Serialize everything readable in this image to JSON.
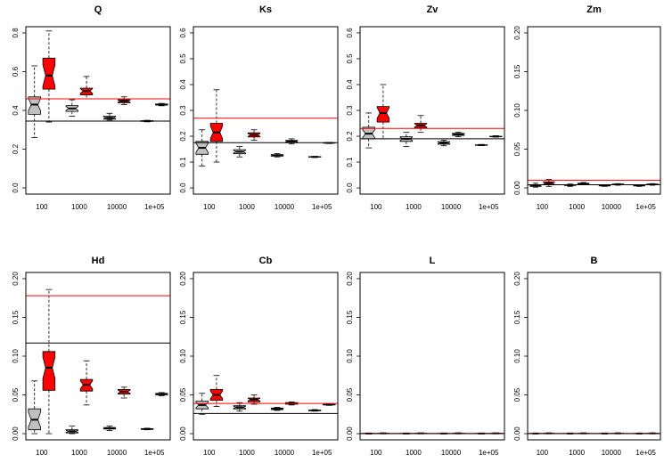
{
  "chart_data": [
    {
      "type": "box",
      "title": "Q",
      "categories": [
        "100",
        "1000",
        "10000",
        "1e+05"
      ],
      "ylim": [
        0,
        0.8
      ],
      "yticks": [
        "0.0",
        "0.2",
        "0.4",
        "0.6",
        "0.8"
      ],
      "reference_lines": [
        {
          "color": "#ff0000",
          "y": 0.46
        },
        {
          "color": "#000000",
          "y": 0.345
        }
      ],
      "boxes": [
        {
          "category": "100",
          "group": "gray",
          "min": 0.26,
          "q1": 0.38,
          "median": 0.43,
          "q3": 0.47,
          "max": 0.63
        },
        {
          "category": "100",
          "group": "red",
          "min": 0.34,
          "q1": 0.51,
          "median": 0.58,
          "q3": 0.67,
          "max": 0.81
        },
        {
          "category": "1000",
          "group": "gray",
          "min": 0.37,
          "q1": 0.395,
          "median": 0.41,
          "q3": 0.425,
          "max": 0.455
        },
        {
          "category": "1000",
          "group": "red",
          "min": 0.46,
          "q1": 0.48,
          "median": 0.5,
          "q3": 0.515,
          "max": 0.575
        },
        {
          "category": "10000",
          "group": "gray",
          "min": 0.35,
          "q1": 0.355,
          "median": 0.362,
          "q3": 0.37,
          "max": 0.385
        },
        {
          "category": "10000",
          "group": "red",
          "min": 0.43,
          "q1": 0.44,
          "median": 0.448,
          "q3": 0.455,
          "max": 0.47
        },
        {
          "category": "1e+05",
          "group": "gray",
          "min": 0.341,
          "q1": 0.343,
          "median": 0.345,
          "q3": 0.347,
          "max": 0.349
        },
        {
          "category": "1e+05",
          "group": "red",
          "min": 0.424,
          "q1": 0.427,
          "median": 0.43,
          "q3": 0.433,
          "max": 0.436
        }
      ]
    },
    {
      "type": "box",
      "title": "Ks",
      "categories": [
        "100",
        "1000",
        "10000",
        "1e+05"
      ],
      "ylim": [
        0,
        0.6
      ],
      "yticks": [
        "0.0",
        "0.1",
        "0.2",
        "0.3",
        "0.4",
        "0.5",
        "0.6"
      ],
      "reference_lines": [
        {
          "color": "#ff0000",
          "y": 0.27
        },
        {
          "color": "#000000",
          "y": 0.175
        }
      ],
      "boxes": [
        {
          "category": "100",
          "group": "gray",
          "min": 0.085,
          "q1": 0.13,
          "median": 0.155,
          "q3": 0.18,
          "max": 0.225
        },
        {
          "category": "100",
          "group": "red",
          "min": 0.1,
          "q1": 0.18,
          "median": 0.215,
          "q3": 0.25,
          "max": 0.38
        },
        {
          "category": "1000",
          "group": "gray",
          "min": 0.12,
          "q1": 0.132,
          "median": 0.14,
          "q3": 0.148,
          "max": 0.16
        },
        {
          "category": "1000",
          "group": "red",
          "min": 0.185,
          "q1": 0.197,
          "median": 0.205,
          "q3": 0.213,
          "max": 0.225
        },
        {
          "category": "10000",
          "group": "gray",
          "min": 0.12,
          "q1": 0.123,
          "median": 0.126,
          "q3": 0.129,
          "max": 0.133
        },
        {
          "category": "10000",
          "group": "red",
          "min": 0.17,
          "q1": 0.176,
          "median": 0.18,
          "q3": 0.184,
          "max": 0.19
        },
        {
          "category": "1e+05",
          "group": "gray",
          "min": 0.118,
          "q1": 0.119,
          "median": 0.12,
          "q3": 0.121,
          "max": 0.122
        },
        {
          "category": "1e+05",
          "group": "red",
          "min": 0.172,
          "q1": 0.173,
          "median": 0.174,
          "q3": 0.175,
          "max": 0.176
        }
      ]
    },
    {
      "type": "box",
      "title": "Zv",
      "categories": [
        "100",
        "1000",
        "10000",
        "1e+05"
      ],
      "ylim": [
        0,
        0.6
      ],
      "yticks": [
        "0.0",
        "0.1",
        "0.2",
        "0.3",
        "0.4",
        "0.5",
        "0.6"
      ],
      "reference_lines": [
        {
          "color": "#ff0000",
          "y": 0.23
        },
        {
          "color": "#000000",
          "y": 0.19
        }
      ],
      "boxes": [
        {
          "category": "100",
          "group": "gray",
          "min": 0.155,
          "q1": 0.19,
          "median": 0.21,
          "q3": 0.235,
          "max": 0.29
        },
        {
          "category": "100",
          "group": "red",
          "min": 0.19,
          "q1": 0.255,
          "median": 0.29,
          "q3": 0.315,
          "max": 0.4
        },
        {
          "category": "1000",
          "group": "gray",
          "min": 0.16,
          "q1": 0.18,
          "median": 0.19,
          "q3": 0.198,
          "max": 0.215
        },
        {
          "category": "1000",
          "group": "red",
          "min": 0.215,
          "q1": 0.232,
          "median": 0.242,
          "q3": 0.25,
          "max": 0.28
        },
        {
          "category": "10000",
          "group": "gray",
          "min": 0.163,
          "q1": 0.169,
          "median": 0.174,
          "q3": 0.179,
          "max": 0.185
        },
        {
          "category": "10000",
          "group": "red",
          "min": 0.198,
          "q1": 0.203,
          "median": 0.207,
          "q3": 0.211,
          "max": 0.216
        },
        {
          "category": "1e+05",
          "group": "gray",
          "min": 0.164,
          "q1": 0.165,
          "median": 0.166,
          "q3": 0.167,
          "max": 0.168
        },
        {
          "category": "1e+05",
          "group": "red",
          "min": 0.197,
          "q1": 0.198,
          "median": 0.199,
          "q3": 0.2,
          "max": 0.202
        }
      ]
    },
    {
      "type": "box",
      "title": "Zm",
      "categories": [
        "100",
        "1000",
        "10000",
        "1e+05"
      ],
      "ylim": [
        0,
        0.2
      ],
      "yticks": [
        "0.00",
        "0.05",
        "0.10",
        "0.15",
        "0.20"
      ],
      "reference_lines": [
        {
          "color": "#ff0000",
          "y": 0.01
        },
        {
          "color": "#000000",
          "y": 0.004
        }
      ],
      "boxes": [
        {
          "category": "100",
          "group": "gray",
          "min": 0.001,
          "q1": 0.002,
          "median": 0.003,
          "q3": 0.004,
          "max": 0.006
        },
        {
          "category": "100",
          "group": "red",
          "min": 0.002,
          "q1": 0.004,
          "median": 0.006,
          "q3": 0.008,
          "max": 0.011
        },
        {
          "category": "1000",
          "group": "gray",
          "min": 0.002,
          "q1": 0.003,
          "median": 0.0035,
          "q3": 0.004,
          "max": 0.005
        },
        {
          "category": "1000",
          "group": "red",
          "min": 0.004,
          "q1": 0.005,
          "median": 0.0055,
          "q3": 0.006,
          "max": 0.007
        },
        {
          "category": "10000",
          "group": "gray",
          "min": 0.002,
          "q1": 0.0025,
          "median": 0.003,
          "q3": 0.0035,
          "max": 0.004
        },
        {
          "category": "10000",
          "group": "red",
          "min": 0.0035,
          "q1": 0.004,
          "median": 0.0045,
          "q3": 0.005,
          "max": 0.0055
        },
        {
          "category": "1e+05",
          "group": "gray",
          "min": 0.002,
          "q1": 0.0025,
          "median": 0.003,
          "q3": 0.0035,
          "max": 0.004
        },
        {
          "category": "1e+05",
          "group": "red",
          "min": 0.0035,
          "q1": 0.004,
          "median": 0.0045,
          "q3": 0.005,
          "max": 0.0055
        }
      ]
    },
    {
      "type": "box",
      "title": "Hd",
      "categories": [
        "100",
        "1000",
        "10000",
        "1e+05"
      ],
      "ylim": [
        0,
        0.2
      ],
      "yticks": [
        "0.00",
        "0.05",
        "0.10",
        "0.15",
        "0.20"
      ],
      "reference_lines": [
        {
          "color": "#ff0000",
          "y": 0.178
        },
        {
          "color": "#000000",
          "y": 0.117
        }
      ],
      "boxes": [
        {
          "category": "100",
          "group": "gray",
          "min": 0.0,
          "q1": 0.005,
          "median": 0.018,
          "q3": 0.032,
          "max": 0.068
        },
        {
          "category": "100",
          "group": "red",
          "min": 0.0,
          "q1": 0.056,
          "median": 0.085,
          "q3": 0.106,
          "max": 0.186
        },
        {
          "category": "1000",
          "group": "gray",
          "min": 0.0,
          "q1": 0.001,
          "median": 0.003,
          "q3": 0.005,
          "max": 0.01
        },
        {
          "category": "1000",
          "group": "red",
          "min": 0.037,
          "q1": 0.055,
          "median": 0.063,
          "q3": 0.07,
          "max": 0.094
        },
        {
          "category": "10000",
          "group": "gray",
          "min": 0.004,
          "q1": 0.006,
          "median": 0.007,
          "q3": 0.008,
          "max": 0.01
        },
        {
          "category": "10000",
          "group": "red",
          "min": 0.046,
          "q1": 0.051,
          "median": 0.054,
          "q3": 0.057,
          "max": 0.06
        },
        {
          "category": "1e+05",
          "group": "gray",
          "min": 0.005,
          "q1": 0.0055,
          "median": 0.006,
          "q3": 0.0065,
          "max": 0.007
        },
        {
          "category": "1e+05",
          "group": "red",
          "min": 0.049,
          "q1": 0.05,
          "median": 0.051,
          "q3": 0.052,
          "max": 0.053
        }
      ]
    },
    {
      "type": "box",
      "title": "Cb",
      "categories": [
        "100",
        "1000",
        "10000",
        "1e+05"
      ],
      "ylim": [
        0,
        0.2
      ],
      "yticks": [
        "0.00",
        "0.05",
        "0.10",
        "0.15",
        "0.20"
      ],
      "reference_lines": [
        {
          "color": "#ff0000",
          "y": 0.039
        },
        {
          "color": "#000000",
          "y": 0.026
        }
      ],
      "boxes": [
        {
          "category": "100",
          "group": "gray",
          "min": 0.025,
          "q1": 0.032,
          "median": 0.037,
          "q3": 0.042,
          "max": 0.052
        },
        {
          "category": "100",
          "group": "red",
          "min": 0.035,
          "q1": 0.043,
          "median": 0.05,
          "q3": 0.057,
          "max": 0.075
        },
        {
          "category": "1000",
          "group": "gray",
          "min": 0.029,
          "q1": 0.032,
          "median": 0.034,
          "q3": 0.036,
          "max": 0.04
        },
        {
          "category": "1000",
          "group": "red",
          "min": 0.038,
          "q1": 0.041,
          "median": 0.044,
          "q3": 0.046,
          "max": 0.05
        },
        {
          "category": "10000",
          "group": "gray",
          "min": 0.03,
          "q1": 0.031,
          "median": 0.032,
          "q3": 0.033,
          "max": 0.034
        },
        {
          "category": "10000",
          "group": "red",
          "min": 0.037,
          "q1": 0.038,
          "median": 0.039,
          "q3": 0.04,
          "max": 0.041
        },
        {
          "category": "1e+05",
          "group": "gray",
          "min": 0.029,
          "q1": 0.0295,
          "median": 0.03,
          "q3": 0.0305,
          "max": 0.031
        },
        {
          "category": "1e+05",
          "group": "red",
          "min": 0.0365,
          "q1": 0.037,
          "median": 0.0375,
          "q3": 0.038,
          "max": 0.0385
        }
      ]
    },
    {
      "type": "box",
      "title": "L",
      "categories": [
        "100",
        "1000",
        "10000",
        "1e+05"
      ],
      "ylim": [
        0,
        0.2
      ],
      "yticks": [
        "0.00",
        "0.05",
        "0.10",
        "0.15",
        "0.20"
      ],
      "reference_lines": [
        {
          "color": "#ff0000",
          "y": 0.0003
        },
        {
          "color": "#000000",
          "y": 0.0001
        }
      ],
      "boxes": [
        {
          "category": "100",
          "group": "gray",
          "min": 0.0,
          "q1": 0.0,
          "median": 0.0002,
          "q3": 0.0004,
          "max": 0.0006
        },
        {
          "category": "100",
          "group": "red",
          "min": 0.0,
          "q1": 0.0002,
          "median": 0.0004,
          "q3": 0.0006,
          "max": 0.0008
        },
        {
          "category": "1000",
          "group": "gray",
          "min": 0.0,
          "q1": 0.0,
          "median": 0.0002,
          "q3": 0.0004,
          "max": 0.0006
        },
        {
          "category": "1000",
          "group": "red",
          "min": 0.0,
          "q1": 0.0002,
          "median": 0.0004,
          "q3": 0.0006,
          "max": 0.0008
        },
        {
          "category": "10000",
          "group": "gray",
          "min": 0.0,
          "q1": 0.0,
          "median": 0.0002,
          "q3": 0.0004,
          "max": 0.0006
        },
        {
          "category": "10000",
          "group": "red",
          "min": 0.0,
          "q1": 0.0002,
          "median": 0.0004,
          "q3": 0.0006,
          "max": 0.0008
        },
        {
          "category": "1e+05",
          "group": "gray",
          "min": 0.0,
          "q1": 0.0,
          "median": 0.0002,
          "q3": 0.0004,
          "max": 0.0006
        },
        {
          "category": "1e+05",
          "group": "red",
          "min": 0.0,
          "q1": 0.0002,
          "median": 0.0004,
          "q3": 0.0006,
          "max": 0.0008
        }
      ]
    },
    {
      "type": "box",
      "title": "B",
      "categories": [
        "100",
        "1000",
        "10000",
        "1e+05"
      ],
      "ylim": [
        0,
        0.2
      ],
      "yticks": [
        "0.00",
        "0.05",
        "0.10",
        "0.15",
        "0.20"
      ],
      "reference_lines": [
        {
          "color": "#ff0000",
          "y": 0.0003
        },
        {
          "color": "#000000",
          "y": 0.0001
        }
      ],
      "boxes": [
        {
          "category": "100",
          "group": "gray",
          "min": 0.0,
          "q1": 0.0,
          "median": 0.0002,
          "q3": 0.0004,
          "max": 0.0006
        },
        {
          "category": "100",
          "group": "red",
          "min": 0.0,
          "q1": 0.0002,
          "median": 0.0004,
          "q3": 0.0006,
          "max": 0.0008
        },
        {
          "category": "1000",
          "group": "gray",
          "min": 0.0,
          "q1": 0.0,
          "median": 0.0002,
          "q3": 0.0004,
          "max": 0.0006
        },
        {
          "category": "1000",
          "group": "red",
          "min": 0.0,
          "q1": 0.0002,
          "median": 0.0004,
          "q3": 0.0006,
          "max": 0.0008
        },
        {
          "category": "10000",
          "group": "gray",
          "min": 0.0,
          "q1": 0.0,
          "median": 0.0002,
          "q3": 0.0004,
          "max": 0.0006
        },
        {
          "category": "10000",
          "group": "red",
          "min": 0.0,
          "q1": 0.0002,
          "median": 0.0004,
          "q3": 0.0006,
          "max": 0.0008
        },
        {
          "category": "1e+05",
          "group": "gray",
          "min": 0.0,
          "q1": 0.0,
          "median": 0.0002,
          "q3": 0.0004,
          "max": 0.0006
        },
        {
          "category": "1e+05",
          "group": "red",
          "min": 0.0,
          "q1": 0.0002,
          "median": 0.0004,
          "q3": 0.0006,
          "max": 0.0008
        }
      ]
    }
  ],
  "colors": {
    "gray_box": "#c0c0c0",
    "red_box": "#ff0000",
    "red_line": "#ff0000",
    "black_line": "#000000"
  }
}
